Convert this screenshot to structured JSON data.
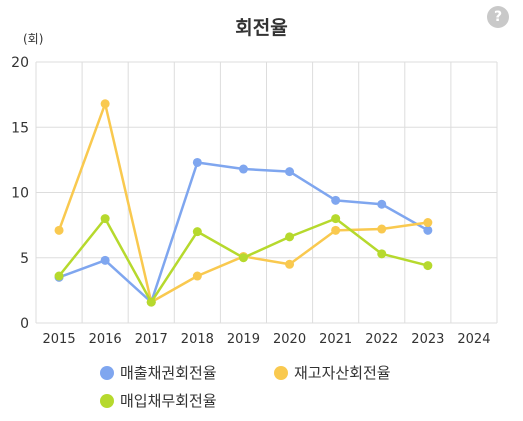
{
  "help_icon": "question-mark-icon",
  "chart_data": {
    "type": "line",
    "title": "회전율",
    "ylabel": "(회)",
    "xlabel": "",
    "ylim": [
      0,
      20
    ],
    "yticks": [
      "0",
      "5",
      "10",
      "15",
      "20"
    ],
    "categories": [
      "2015",
      "2016",
      "2017",
      "2018",
      "2019",
      "2020",
      "2021",
      "2022",
      "2023",
      "2024"
    ],
    "grid": true,
    "legend_position": "bottom",
    "series": [
      {
        "name": "매출채권회전율",
        "color": "#7fa6ef",
        "values": [
          3.5,
          4.8,
          1.6,
          12.3,
          11.8,
          11.6,
          9.4,
          9.1,
          7.1,
          null
        ]
      },
      {
        "name": "재고자산회전율",
        "color": "#f9c94f",
        "values": [
          7.1,
          16.8,
          1.6,
          3.6,
          5.1,
          4.5,
          7.1,
          7.2,
          7.7,
          null
        ]
      },
      {
        "name": "매입채무회전율",
        "color": "#b6d92d",
        "values": [
          3.6,
          8.0,
          1.6,
          7.0,
          5.0,
          6.6,
          8.0,
          5.3,
          4.4,
          null
        ]
      }
    ]
  }
}
